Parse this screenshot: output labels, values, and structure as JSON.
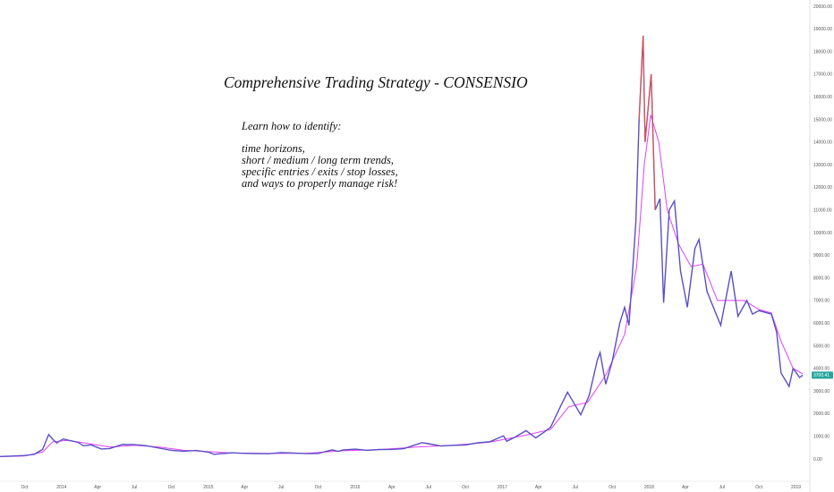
{
  "annotation": {
    "title": "Comprehensive Trading Strategy - CONSENSIO",
    "lines": [
      "Learn how to identify:",
      "",
      "time horizons,",
      "short / medium / long term trends,",
      "specific entries / exits / stop losses,",
      "and ways to properly manage risk!"
    ]
  },
  "price_badge": {
    "label": "3700.41",
    "color": "#26a69a"
  },
  "colors": {
    "background": "#ffffff",
    "price_line": "#5b4fc4",
    "price_highlight": "#e0524a",
    "moving_average": "#e040fb",
    "price_badge": "#26a69a",
    "axis_line": "#e0e0e0"
  },
  "chart_data": {
    "type": "line",
    "title": "",
    "xlabel": "",
    "ylabel": "",
    "grid": false,
    "y_axis_position": "right",
    "ylim": [
      -1000,
      20000
    ],
    "xlim": [
      "2013-08-01",
      "2019-01-20"
    ],
    "x_ticks": [
      {
        "x": "2013-10-01",
        "label": "Oct"
      },
      {
        "x": "2014-01-01",
        "label": "2014"
      },
      {
        "x": "2014-04-01",
        "label": "Apr"
      },
      {
        "x": "2014-07-01",
        "label": "Jul"
      },
      {
        "x": "2014-10-01",
        "label": "Oct"
      },
      {
        "x": "2015-01-01",
        "label": "2015"
      },
      {
        "x": "2015-04-01",
        "label": "Apr"
      },
      {
        "x": "2015-07-01",
        "label": "Jul"
      },
      {
        "x": "2015-10-01",
        "label": "Oct"
      },
      {
        "x": "2016-01-01",
        "label": "2016"
      },
      {
        "x": "2016-04-01",
        "label": "Apr"
      },
      {
        "x": "2016-07-01",
        "label": "Jul"
      },
      {
        "x": "2016-10-01",
        "label": "Oct"
      },
      {
        "x": "2017-01-01",
        "label": "2017"
      },
      {
        "x": "2017-04-01",
        "label": "Apr"
      },
      {
        "x": "2017-07-01",
        "label": "Jul"
      },
      {
        "x": "2017-10-01",
        "label": "Oct"
      },
      {
        "x": "2018-01-01",
        "label": "2018"
      },
      {
        "x": "2018-04-01",
        "label": "Apr"
      },
      {
        "x": "2018-07-01",
        "label": "Jul"
      },
      {
        "x": "2018-10-01",
        "label": "Oct"
      },
      {
        "x": "2019-01-01",
        "label": "2019"
      }
    ],
    "y_ticks": [
      {
        "v": 0,
        "label": "0.00"
      },
      {
        "v": 1000,
        "label": "1000.00"
      },
      {
        "v": 2000,
        "label": "2000.00"
      },
      {
        "v": 3000,
        "label": "3000.00"
      },
      {
        "v": 4000,
        "label": "4000.00"
      },
      {
        "v": 5000,
        "label": "5000.00"
      },
      {
        "v": 6000,
        "label": "6000.00"
      },
      {
        "v": 7000,
        "label": "7000.00"
      },
      {
        "v": 8000,
        "label": "8000.00"
      },
      {
        "v": 9000,
        "label": "9000.00"
      },
      {
        "v": 10000,
        "label": "10000.00"
      },
      {
        "v": 11000,
        "label": "11000.00"
      },
      {
        "v": 12000,
        "label": "12000.00"
      },
      {
        "v": 13000,
        "label": "13000.00"
      },
      {
        "v": 14000,
        "label": "14000.00"
      },
      {
        "v": 15000,
        "label": "15000.00"
      },
      {
        "v": 16000,
        "label": "16000.00"
      },
      {
        "v": 17000,
        "label": "17000.00"
      },
      {
        "v": 18000,
        "label": "18000.00"
      },
      {
        "v": 19000,
        "label": "19000.00"
      },
      {
        "v": 20000,
        "label": "20000.00"
      }
    ],
    "series": [
      {
        "role": "price",
        "color": "#5b4fc4",
        "points": [
          [
            "2013-08-01",
            105
          ],
          [
            "2013-09-01",
            125
          ],
          [
            "2013-10-01",
            150
          ],
          [
            "2013-10-25",
            200
          ],
          [
            "2013-11-15",
            420
          ],
          [
            "2013-11-30",
            1080
          ],
          [
            "2013-12-10",
            870
          ],
          [
            "2013-12-20",
            700
          ],
          [
            "2014-01-05",
            880
          ],
          [
            "2014-01-20",
            820
          ],
          [
            "2014-02-10",
            740
          ],
          [
            "2014-02-25",
            580
          ],
          [
            "2014-03-15",
            620
          ],
          [
            "2014-04-10",
            440
          ],
          [
            "2014-05-01",
            460
          ],
          [
            "2014-06-01",
            640
          ],
          [
            "2014-07-01",
            630
          ],
          [
            "2014-08-01",
            580
          ],
          [
            "2014-09-01",
            475
          ],
          [
            "2014-10-01",
            380
          ],
          [
            "2014-11-01",
            340
          ],
          [
            "2014-12-01",
            370
          ],
          [
            "2015-01-01",
            300
          ],
          [
            "2015-01-15",
            200
          ],
          [
            "2015-02-01",
            230
          ],
          [
            "2015-03-01",
            270
          ],
          [
            "2015-04-01",
            245
          ],
          [
            "2015-05-01",
            235
          ],
          [
            "2015-06-01",
            228
          ],
          [
            "2015-07-01",
            280
          ],
          [
            "2015-08-01",
            260
          ],
          [
            "2015-09-01",
            232
          ],
          [
            "2015-10-01",
            240
          ],
          [
            "2015-11-05",
            400
          ],
          [
            "2015-11-20",
            330
          ],
          [
            "2015-12-01",
            390
          ],
          [
            "2016-01-01",
            430
          ],
          [
            "2016-02-01",
            380
          ],
          [
            "2016-03-01",
            415
          ],
          [
            "2016-04-01",
            420
          ],
          [
            "2016-05-01",
            450
          ],
          [
            "2016-06-15",
            720
          ],
          [
            "2016-07-01",
            670
          ],
          [
            "2016-08-01",
            570
          ],
          [
            "2016-09-01",
            600
          ],
          [
            "2016-10-01",
            615
          ],
          [
            "2016-11-01",
            710
          ],
          [
            "2016-12-01",
            760
          ],
          [
            "2017-01-04",
            1020
          ],
          [
            "2017-01-12",
            780
          ],
          [
            "2017-02-01",
            960
          ],
          [
            "2017-03-01",
            1250
          ],
          [
            "2017-03-25",
            930
          ],
          [
            "2017-04-15",
            1180
          ],
          [
            "2017-05-01",
            1400
          ],
          [
            "2017-05-25",
            2300
          ],
          [
            "2017-06-12",
            2950
          ],
          [
            "2017-07-15",
            1950
          ],
          [
            "2017-08-05",
            2800
          ],
          [
            "2017-08-25",
            4350
          ],
          [
            "2017-09-01",
            4700
          ],
          [
            "2017-09-15",
            3300
          ],
          [
            "2017-10-01",
            4300
          ],
          [
            "2017-10-20",
            6000
          ],
          [
            "2017-11-01",
            6700
          ],
          [
            "2017-11-12",
            5900
          ],
          [
            "2017-11-29",
            10500
          ],
          [
            "2017-12-07",
            15000
          ],
          [
            "2017-12-17",
            18700
          ],
          [
            "2017-12-22",
            14000
          ],
          [
            "2018-01-06",
            17000
          ],
          [
            "2018-01-16",
            11000
          ],
          [
            "2018-01-28",
            11500
          ],
          [
            "2018-02-06",
            6900
          ],
          [
            "2018-02-20",
            11000
          ],
          [
            "2018-03-05",
            11400
          ],
          [
            "2018-03-20",
            8300
          ],
          [
            "2018-04-06",
            6700
          ],
          [
            "2018-04-25",
            9300
          ],
          [
            "2018-05-05",
            9700
          ],
          [
            "2018-05-25",
            7400
          ],
          [
            "2018-06-12",
            6600
          ],
          [
            "2018-06-28",
            5900
          ],
          [
            "2018-07-24",
            8300
          ],
          [
            "2018-08-10",
            6300
          ],
          [
            "2018-09-01",
            7000
          ],
          [
            "2018-09-15",
            6400
          ],
          [
            "2018-10-01",
            6550
          ],
          [
            "2018-11-01",
            6400
          ],
          [
            "2018-11-14",
            5600
          ],
          [
            "2018-11-25",
            3800
          ],
          [
            "2018-12-15",
            3200
          ],
          [
            "2018-12-25",
            4000
          ],
          [
            "2019-01-10",
            3600
          ],
          [
            "2019-01-18",
            3700
          ]
        ]
      },
      {
        "role": "moving average",
        "color": "#e040fb",
        "points": [
          [
            "2013-08-01",
            100
          ],
          [
            "2013-10-01",
            130
          ],
          [
            "2013-11-15",
            300
          ],
          [
            "2013-12-10",
            760
          ],
          [
            "2014-01-15",
            820
          ],
          [
            "2014-03-01",
            700
          ],
          [
            "2014-05-01",
            520
          ],
          [
            "2014-07-01",
            600
          ],
          [
            "2014-09-01",
            520
          ],
          [
            "2014-11-01",
            380
          ],
          [
            "2015-01-01",
            320
          ],
          [
            "2015-03-01",
            260
          ],
          [
            "2015-06-01",
            240
          ],
          [
            "2015-09-01",
            245
          ],
          [
            "2015-12-01",
            360
          ],
          [
            "2016-03-01",
            410
          ],
          [
            "2016-06-01",
            520
          ],
          [
            "2016-09-01",
            600
          ],
          [
            "2016-12-01",
            740
          ],
          [
            "2017-03-01",
            1050
          ],
          [
            "2017-05-01",
            1300
          ],
          [
            "2017-06-15",
            2300
          ],
          [
            "2017-08-01",
            2500
          ],
          [
            "2017-09-15",
            3700
          ],
          [
            "2017-11-01",
            5500
          ],
          [
            "2017-12-01",
            8500
          ],
          [
            "2017-12-20",
            13000
          ],
          [
            "2018-01-05",
            15200
          ],
          [
            "2018-01-25",
            14000
          ],
          [
            "2018-02-15",
            11000
          ],
          [
            "2018-03-15",
            9500
          ],
          [
            "2018-04-15",
            8500
          ],
          [
            "2018-05-15",
            8600
          ],
          [
            "2018-06-20",
            7000
          ],
          [
            "2018-07-25",
            7000
          ],
          [
            "2018-08-25",
            7000
          ],
          [
            "2018-10-01",
            6600
          ],
          [
            "2018-11-01",
            6450
          ],
          [
            "2018-11-25",
            5200
          ],
          [
            "2018-12-25",
            4000
          ],
          [
            "2019-01-18",
            3750
          ]
        ]
      }
    ],
    "highlight_segment": {
      "role": "price highlight",
      "color": "#e0524a",
      "points": [
        [
          "2017-12-07",
          15000
        ],
        [
          "2017-12-17",
          18700
        ],
        [
          "2017-12-22",
          14000
        ],
        [
          "2018-01-06",
          17000
        ],
        [
          "2018-01-16",
          11000
        ]
      ]
    }
  }
}
